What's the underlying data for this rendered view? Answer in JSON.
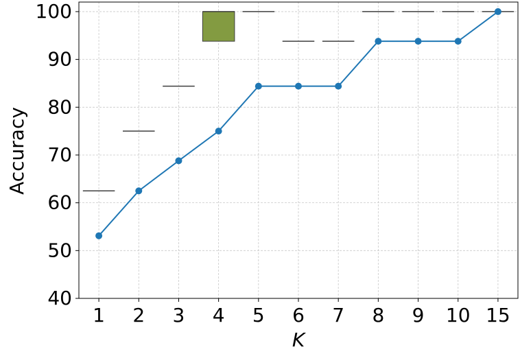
{
  "chart_data": {
    "type": "line",
    "xlabel": "K",
    "ylabel": "Accuracy",
    "categories": [
      "1",
      "2",
      "3",
      "4",
      "5",
      "6",
      "7",
      "8",
      "9",
      "10",
      "15"
    ],
    "series": [
      {
        "color": "#1f77b4",
        "values": [
          53.1,
          62.5,
          68.8,
          75,
          84.4,
          84.4,
          84.4,
          93.8,
          93.8,
          93.8,
          100
        ]
      }
    ],
    "boxes": {
      "color": "#839b41",
      "q1": [
        62.5,
        75,
        84.4,
        93.8,
        100,
        93.8,
        93.8,
        100,
        100,
        100,
        100
      ],
      "median": [
        62.5,
        75,
        84.4,
        100,
        100,
        93.8,
        93.8,
        100,
        100,
        100,
        100
      ],
      "q3": [
        62.5,
        75,
        84.4,
        100,
        100,
        93.8,
        93.8,
        100,
        100,
        100,
        100
      ]
    },
    "ylim": [
      40,
      102
    ],
    "yticks": [
      40,
      50,
      60,
      70,
      80,
      90,
      100
    ],
    "grid": true
  }
}
